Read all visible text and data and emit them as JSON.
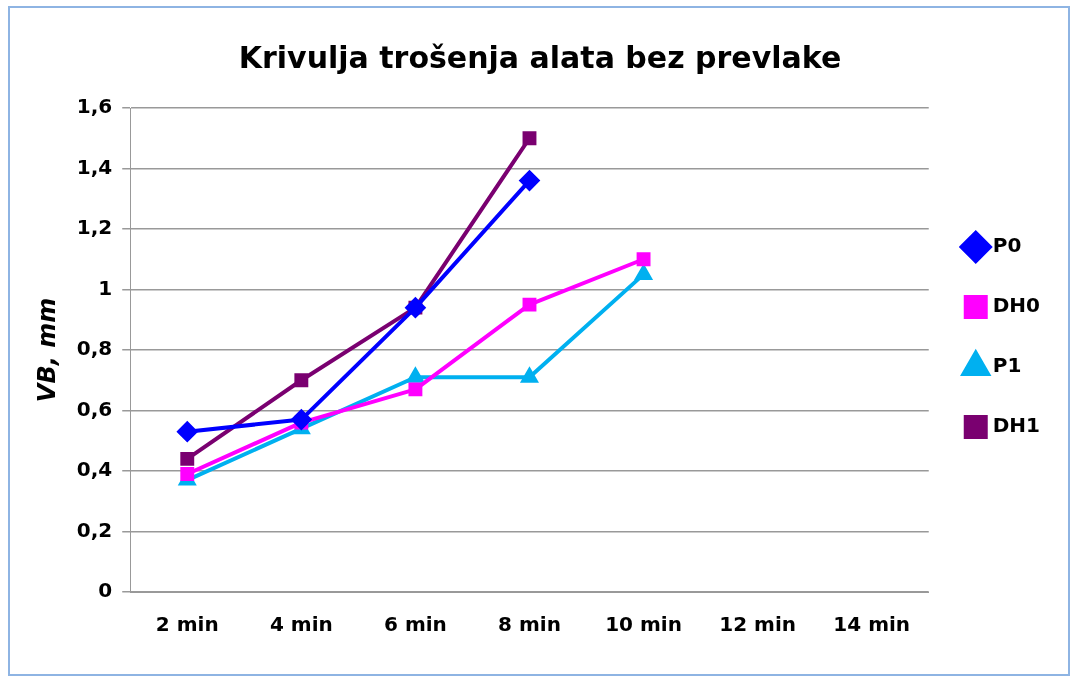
{
  "chart_data": {
    "type": "line",
    "title": "Krivulja trošenja alata bez prevlake",
    "ylabel": "VB, mm",
    "categories": [
      "2 min",
      "4 min",
      "6 min",
      "8 min",
      "10 min",
      "12 min",
      "14 min"
    ],
    "series": [
      {
        "name": "P0",
        "color": "#0000ff",
        "marker": "diamond",
        "values": [
          0.53,
          0.57,
          0.94,
          1.36,
          null,
          null,
          null
        ]
      },
      {
        "name": "DH0",
        "color": "#ff00ff",
        "marker": "square",
        "values": [
          0.39,
          0.56,
          0.67,
          0.95,
          1.1,
          null,
          null
        ]
      },
      {
        "name": "P1",
        "color": "#00b0f0",
        "marker": "triangle",
        "values": [
          0.37,
          0.54,
          0.71,
          0.71,
          1.05,
          null,
          null
        ]
      },
      {
        "name": "DH1",
        "color": "#7a0070",
        "marker": "square",
        "values": [
          0.44,
          0.7,
          0.94,
          1.5,
          null,
          null,
          null
        ]
      }
    ],
    "ylim": [
      0,
      1.6
    ],
    "yticks": [
      0,
      {
        "value": 0.2,
        "label": "0,2"
      },
      {
        "value": 0.4,
        "label": "0,4"
      },
      {
        "value": 0.6,
        "label": "0,6"
      },
      {
        "value": 0.8,
        "label": "0,8"
      },
      1,
      {
        "value": 1.2,
        "label": "1,2"
      },
      {
        "value": 1.4,
        "label": "1,4"
      },
      {
        "value": 1.6,
        "label": "1,6"
      }
    ],
    "grid": "y",
    "legend": "right",
    "line_style": "solid"
  }
}
